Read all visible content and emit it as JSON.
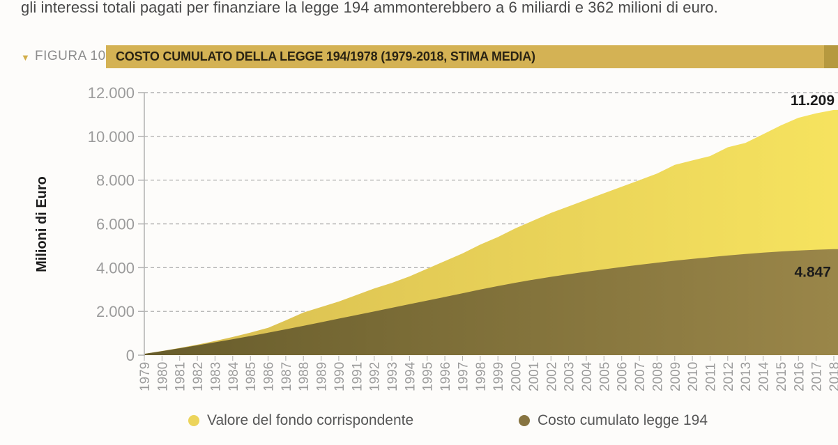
{
  "intro_text": "gli interessi totali pagati per finanziare la legge 194 ammonterebbero a 6 miliardi e 362 milioni di euro.",
  "figure": {
    "marker": "▼",
    "label": "FIGURA 10",
    "banner_title": "COSTO CUMULATO DELLA LEGGE 194/1978 (1979-2018, STIMA MEDIA)",
    "banner_color": "#d4b254",
    "banner_edge_color": "#b6993f"
  },
  "chart_data": {
    "type": "area",
    "title": "COSTO CUMULATO DELLA LEGGE 194/1978 (1979-2018, STIMA MEDIA)",
    "xlabel": "",
    "ylabel": "Milioni di Euro",
    "ylim": [
      0,
      12000
    ],
    "ytick_step": 2000,
    "ytick_labels": [
      "0",
      "2.000",
      "4.000",
      "6.000",
      "8.000",
      "10.000",
      "12.000"
    ],
    "grid": "horizontal-dashed",
    "legend_position": "bottom",
    "axis_color": "#b5b5b5",
    "grid_color": "#a3a3a3",
    "tick_label_color": "#9b9b9b",
    "annotation_color": "#1b1b1b",
    "years": [
      1979,
      1980,
      1981,
      1982,
      1983,
      1984,
      1985,
      1986,
      1987,
      1988,
      1989,
      1990,
      1991,
      1992,
      1993,
      1994,
      1995,
      1996,
      1997,
      1998,
      1999,
      2000,
      2001,
      2002,
      2003,
      2004,
      2005,
      2006,
      2007,
      2008,
      2009,
      2010,
      2011,
      2012,
      2013,
      2014,
      2015,
      2016,
      2017,
      2018
    ],
    "series": [
      {
        "name": "Valore del fondo corrispondente",
        "color_start": "#d7bc50",
        "color_end": "#f6e35f",
        "end_label": "11.209",
        "values": [
          60,
          190,
          330,
          480,
          650,
          830,
          1030,
          1250,
          1590,
          1950,
          2200,
          2450,
          2750,
          3050,
          3300,
          3600,
          3950,
          4300,
          4650,
          5050,
          5400,
          5800,
          6150,
          6500,
          6800,
          7100,
          7400,
          7700,
          8000,
          8300,
          8700,
          8900,
          9100,
          9500,
          9700,
          10100,
          10500,
          10850,
          11050,
          11209
        ]
      },
      {
        "name": "Costo cumulato legge 194",
        "color_start": "#675c2b",
        "color_end": "#9a8649",
        "end_label": "4.847",
        "values": [
          60,
          185,
          315,
          450,
          590,
          730,
          875,
          1025,
          1180,
          1340,
          1505,
          1670,
          1835,
          2000,
          2165,
          2330,
          2495,
          2660,
          2830,
          3000,
          3160,
          3310,
          3450,
          3580,
          3700,
          3815,
          3925,
          4030,
          4130,
          4225,
          4315,
          4400,
          4480,
          4555,
          4625,
          4690,
          4740,
          4785,
          4820,
          4847
        ]
      }
    ]
  },
  "legend": {
    "items": [
      {
        "label": "Valore del fondo corrispondente",
        "color": "#ecd45b"
      },
      {
        "label": "Costo cumulato legge 194",
        "color": "#877441"
      }
    ]
  }
}
